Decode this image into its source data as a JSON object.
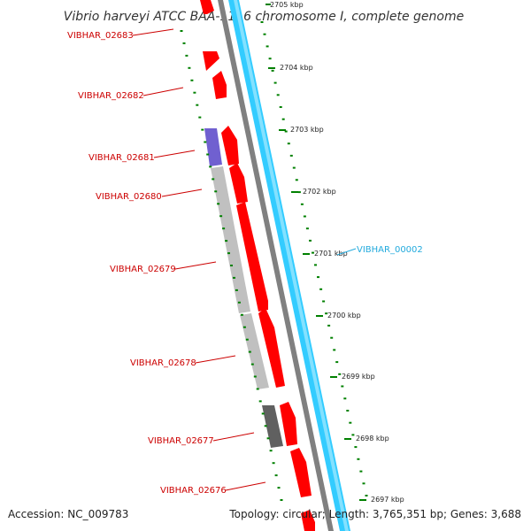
{
  "title": "Vibrio harveyi ATCC BAA-1116 chromosome I, complete genome",
  "accession": "Accession: NC_009783",
  "summary": "Topology: circular; Length: 3,765,351 bp; Genes: 3,688",
  "colors": {
    "red_feature": "#ff0000",
    "cyan_strand": "#33ccff",
    "backbone": "#808080",
    "tick": "#008000",
    "grey_feature": "#c0c0c0",
    "dark_grey_feature": "#606060",
    "purple_feature": "#7060d0",
    "red_label": "#cc0000",
    "cyan_label": "#22aadd"
  },
  "ruler_labels": [
    "2705 kbp",
    "2704 kbp",
    "2703 kbp",
    "2702 kbp",
    "2701 kbp",
    "2700 kbp",
    "2699 kbp",
    "2698 kbp",
    "2697 kbp"
  ],
  "gene_labels": [
    {
      "text": "VIBHAR_02683",
      "color": "red"
    },
    {
      "text": "VIBHAR_02682",
      "color": "red"
    },
    {
      "text": "VIBHAR_02681",
      "color": "red"
    },
    {
      "text": "VIBHAR_02680",
      "color": "red"
    },
    {
      "text": "VIBHAR_02679",
      "color": "red"
    },
    {
      "text": "VIBHAR_02678",
      "color": "red"
    },
    {
      "text": "VIBHAR_02677",
      "color": "red"
    },
    {
      "text": "VIBHAR_02676",
      "color": "red"
    },
    {
      "text": "VIBHAR_00002",
      "color": "cyan"
    }
  ]
}
